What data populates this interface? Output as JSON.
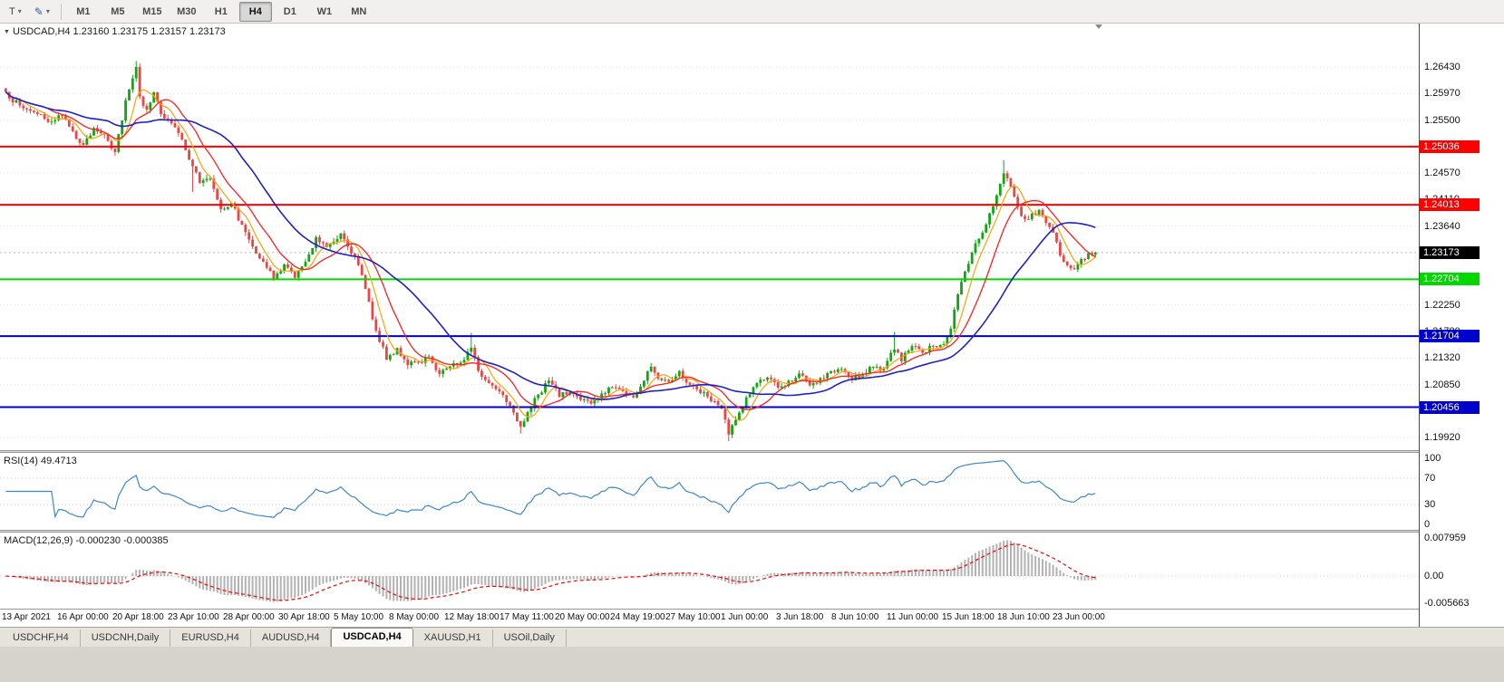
{
  "toolbar": {
    "templates_button_label": "T",
    "timeframes": [
      "M1",
      "M5",
      "M15",
      "M30",
      "H1",
      "H4",
      "D1",
      "W1",
      "MN"
    ],
    "active_timeframe": "H4"
  },
  "tabs": {
    "active": "USDCAD,H4",
    "items": [
      "USDCHF,H4",
      "USDCNH,Daily",
      "EURUSD,H4",
      "AUDUSD,H4",
      "USDCAD,H4",
      "XAUUSD,H1",
      "USOil,Daily"
    ]
  },
  "chart_data": {
    "type": "candlestick",
    "symbol": "USDCAD",
    "timeframe": "H4",
    "header_text": "USDCAD,H4 1.23160 1.23175 1.23157 1.23173",
    "ohlc": {
      "open": "1.23160",
      "high": "1.23175",
      "low": "1.23157",
      "close": "1.23173"
    },
    "ylim": [
      1.197,
      1.272
    ],
    "candle_count": 310,
    "current_price": 1.23173,
    "current_price_label": "1.23173",
    "y_ticks": [
      "1.26430",
      "1.25970",
      "1.25500",
      "1.24570",
      "1.24110",
      "1.23640",
      "1.22250",
      "1.21780",
      "1.21320",
      "1.20850",
      "1.19920"
    ],
    "hlines": [
      {
        "price": 1.25036,
        "label": "1.25036",
        "color": "#ff0000"
      },
      {
        "price": 1.24013,
        "label": "1.24013",
        "color": "#ff0000"
      },
      {
        "price": 1.22704,
        "label": "1.22704",
        "color": "#00d800"
      },
      {
        "price": 1.21704,
        "label": "1.21704",
        "color": "#0000cc"
      },
      {
        "price": 1.20456,
        "label": "1.20456",
        "color": "#0000cc"
      }
    ],
    "moving_averages": [
      {
        "name": "ma-fast-line",
        "period": 6,
        "color": "#ffa200",
        "width": 1.2
      },
      {
        "name": "ma-mid-line",
        "period": 13,
        "color": "#ff2020",
        "width": 1.3
      },
      {
        "name": "ma-slow-line",
        "period": 30,
        "color": "#2020c8",
        "width": 1.6
      }
    ],
    "close_anchors": [
      [
        0,
        1.2598
      ],
      [
        4,
        1.2575
      ],
      [
        8,
        1.2565
      ],
      [
        12,
        1.2545
      ],
      [
        15,
        1.256
      ],
      [
        18,
        1.254
      ],
      [
        22,
        1.2505
      ],
      [
        25,
        1.2535
      ],
      [
        28,
        1.2525
      ],
      [
        31,
        1.2495
      ],
      [
        34,
        1.2585
      ],
      [
        36,
        1.2625
      ],
      [
        37,
        1.2645
      ],
      [
        38,
        1.259
      ],
      [
        40,
        1.257
      ],
      [
        42,
        1.2598
      ],
      [
        44,
        1.256
      ],
      [
        47,
        1.2545
      ],
      [
        50,
        1.2515
      ],
      [
        53,
        1.247
      ],
      [
        55,
        1.244
      ],
      [
        58,
        1.2448
      ],
      [
        61,
        1.2395
      ],
      [
        64,
        1.2405
      ],
      [
        67,
        1.2365
      ],
      [
        70,
        1.233
      ],
      [
        73,
        1.23
      ],
      [
        76,
        1.2272
      ],
      [
        79,
        1.2295
      ],
      [
        82,
        1.2275
      ],
      [
        85,
        1.23
      ],
      [
        88,
        1.2345
      ],
      [
        91,
        1.2328
      ],
      [
        95,
        1.2352
      ],
      [
        99,
        1.231
      ],
      [
        102,
        1.2255
      ],
      [
        105,
        1.218
      ],
      [
        108,
        1.213
      ],
      [
        111,
        1.215
      ],
      [
        114,
        1.2118
      ],
      [
        117,
        1.2125
      ],
      [
        120,
        1.2135
      ],
      [
        123,
        1.2105
      ],
      [
        126,
        1.2118
      ],
      [
        129,
        1.2125
      ],
      [
        132,
        1.2152
      ],
      [
        134,
        1.2108
      ],
      [
        137,
        1.2088
      ],
      [
        140,
        1.2075
      ],
      [
        143,
        1.205
      ],
      [
        146,
        1.2012
      ],
      [
        148,
        1.2035
      ],
      [
        151,
        1.2068
      ],
      [
        154,
        1.2092
      ],
      [
        157,
        1.2065
      ],
      [
        160,
        1.2072
      ],
      [
        163,
        1.206
      ],
      [
        166,
        1.2052
      ],
      [
        169,
        1.2068
      ],
      [
        172,
        1.2082
      ],
      [
        175,
        1.2075
      ],
      [
        178,
        1.2062
      ],
      [
        181,
        1.2092
      ],
      [
        183,
        1.2118
      ],
      [
        185,
        1.2098
      ],
      [
        188,
        1.2092
      ],
      [
        191,
        1.2108
      ],
      [
        194,
        1.2085
      ],
      [
        197,
        1.2072
      ],
      [
        200,
        1.2058
      ],
      [
        203,
        1.2042
      ],
      [
        205,
        1.1998
      ],
      [
        207,
        1.2022
      ],
      [
        210,
        1.2062
      ],
      [
        213,
        1.2088
      ],
      [
        216,
        1.2098
      ],
      [
        219,
        1.2078
      ],
      [
        222,
        1.2092
      ],
      [
        225,
        1.2105
      ],
      [
        228,
        1.2082
      ],
      [
        231,
        1.2095
      ],
      [
        234,
        1.2108
      ],
      [
        237,
        1.2112
      ],
      [
        240,
        1.2092
      ],
      [
        243,
        1.2105
      ],
      [
        246,
        1.2118
      ],
      [
        249,
        1.2112
      ],
      [
        252,
        1.2148
      ],
      [
        254,
        1.2128
      ],
      [
        257,
        1.2152
      ],
      [
        260,
        1.2142
      ],
      [
        263,
        1.2152
      ],
      [
        266,
        1.2158
      ],
      [
        268,
        1.2185
      ],
      [
        270,
        1.2245
      ],
      [
        272,
        1.2285
      ],
      [
        274,
        1.2318
      ],
      [
        276,
        1.2342
      ],
      [
        278,
        1.2365
      ],
      [
        280,
        1.2398
      ],
      [
        282,
        1.2438
      ],
      [
        283,
        1.2455
      ],
      [
        285,
        1.2435
      ],
      [
        287,
        1.2398
      ],
      [
        289,
        1.2375
      ],
      [
        291,
        1.2385
      ],
      [
        293,
        1.2392
      ],
      [
        295,
        1.237
      ],
      [
        297,
        1.2352
      ],
      [
        299,
        1.2312
      ],
      [
        301,
        1.2295
      ],
      [
        303,
        1.2288
      ],
      [
        305,
        1.2305
      ],
      [
        307,
        1.2315
      ],
      [
        309,
        1.23173
      ]
    ],
    "wick_overrides": [
      {
        "i": 37,
        "h": 1.2654
      },
      {
        "i": 53,
        "l": 1.2424
      },
      {
        "i": 132,
        "h": 1.2176
      },
      {
        "i": 146,
        "l": 1.1999
      },
      {
        "i": 205,
        "l": 1.1986
      },
      {
        "i": 252,
        "h": 1.2178
      },
      {
        "i": 283,
        "h": 1.248
      }
    ],
    "colors": {
      "bull": "#0fa80f",
      "bear": "#ef4444",
      "grid": "#e3e3e3",
      "background": "#ffffff"
    },
    "rsi": {
      "label": "RSI(14) 49.4713",
      "period": 14,
      "current_value": 49.4713,
      "color": "#3f87c9",
      "levels": [
        70,
        30
      ],
      "ticks": [
        {
          "v": 100,
          "label": "100"
        },
        {
          "v": 70,
          "label": "70"
        },
        {
          "v": 30,
          "label": "30"
        },
        {
          "v": 0,
          "label": "0"
        }
      ],
      "range": [
        0,
        100
      ]
    },
    "macd": {
      "label": "MACD(12,26,9) -0.000230 -0.000385",
      "fast": 12,
      "slow": 26,
      "signal": 9,
      "current_macd": -0.00023,
      "current_signal": -0.000385,
      "hist_color": "#b2b2b2",
      "signal_color": "#ff0000",
      "ticks": [
        {
          "v": 0.007959,
          "label": "0.007959"
        },
        {
          "v": 0,
          "label": "0.00"
        },
        {
          "v": -0.005663,
          "label": "-0.005663"
        }
      ],
      "range": [
        -0.005663,
        0.007959
      ]
    },
    "time_labels": [
      "13 Apr 2021",
      "16 Apr 00:00",
      "20 Apr 18:00",
      "23 Apr 10:00",
      "28 Apr 00:00",
      "30 Apr 18:00",
      "5 May 10:00",
      "8 May 00:00",
      "12 May 18:00",
      "17 May 11:00",
      "20 May 00:00",
      "24 May 19:00",
      "27 May 10:00",
      "1 Jun 00:00",
      "3 Jun 18:00",
      "8 Jun 10:00",
      "11 Jun 00:00",
      "15 Jun 18:00",
      "18 Jun 10:00",
      "23 Jun 00:00"
    ]
  }
}
